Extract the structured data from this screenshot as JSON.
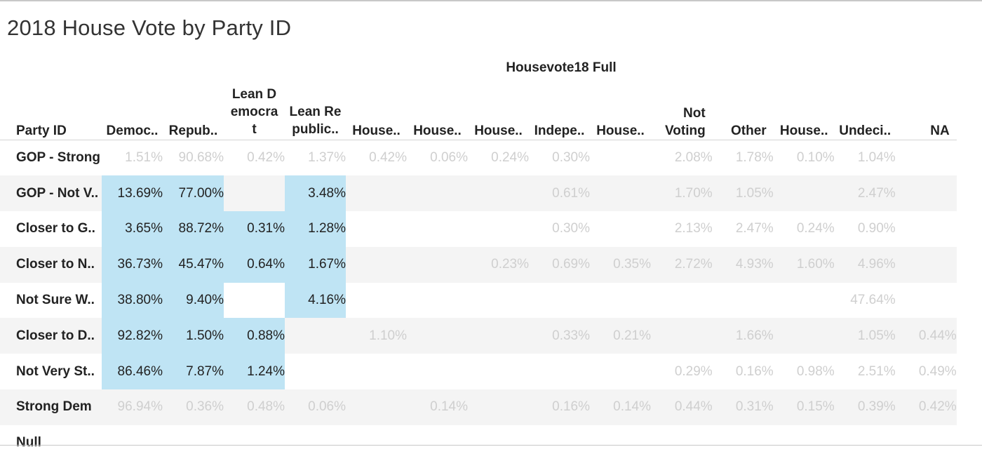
{
  "title": "2018 House Vote by Party ID",
  "chart_data": {
    "type": "table",
    "group_header": "Housevote18 Full",
    "row_header_label": "Party ID",
    "columns": [
      "Democ..",
      "Repub..",
      "Lean Democrat",
      "Lean Republic..",
      "House..",
      "House..",
      "House..",
      "Indepe..",
      "House..",
      "Not Voting",
      "Other",
      "House..",
      "Undeci..",
      "NA"
    ],
    "rows": [
      {
        "label": "GOP - Strong",
        "values": [
          "1.51%",
          "90.68%",
          "0.42%",
          "1.37%",
          "0.42%",
          "0.06%",
          "0.24%",
          "0.30%",
          "",
          "2.08%",
          "1.78%",
          "0.10%",
          "1.04%",
          ""
        ],
        "highlight": []
      },
      {
        "label": "GOP - Not V..",
        "values": [
          "13.69%",
          "77.00%",
          "",
          "3.48%",
          "",
          "",
          "",
          "0.61%",
          "",
          "1.70%",
          "1.05%",
          "",
          "2.47%",
          ""
        ],
        "highlight": [
          0,
          1,
          3
        ]
      },
      {
        "label": "Closer to G..",
        "values": [
          "3.65%",
          "88.72%",
          "0.31%",
          "1.28%",
          "",
          "",
          "",
          "0.30%",
          "",
          "2.13%",
          "2.47%",
          "0.24%",
          "0.90%",
          ""
        ],
        "highlight": [
          0,
          1,
          2,
          3
        ]
      },
      {
        "label": "Closer to N..",
        "values": [
          "36.73%",
          "45.47%",
          "0.64%",
          "1.67%",
          "",
          "",
          "0.23%",
          "0.69%",
          "0.35%",
          "2.72%",
          "4.93%",
          "1.60%",
          "4.96%",
          ""
        ],
        "highlight": [
          0,
          1,
          2,
          3
        ]
      },
      {
        "label": "Not Sure W..",
        "values": [
          "38.80%",
          "9.40%",
          "",
          "4.16%",
          "",
          "",
          "",
          "",
          "",
          "",
          "",
          "",
          "47.64%",
          ""
        ],
        "highlight": [
          0,
          1,
          3
        ]
      },
      {
        "label": "Closer to D..",
        "values": [
          "92.82%",
          "1.50%",
          "0.88%",
          "",
          "1.10%",
          "",
          "",
          "0.33%",
          "0.21%",
          "",
          "1.66%",
          "",
          "1.05%",
          "0.44%"
        ],
        "highlight": [
          0,
          1,
          2
        ]
      },
      {
        "label": "Not Very St..",
        "values": [
          "86.46%",
          "7.87%",
          "1.24%",
          "",
          "",
          "",
          "",
          "",
          "",
          "0.29%",
          "0.16%",
          "0.98%",
          "2.51%",
          "0.49%"
        ],
        "highlight": [
          0,
          1,
          2
        ]
      },
      {
        "label": "Strong Dem",
        "values": [
          "96.94%",
          "0.36%",
          "0.48%",
          "0.06%",
          "",
          "0.14%",
          "",
          "0.16%",
          "0.14%",
          "0.44%",
          "0.31%",
          "0.15%",
          "0.39%",
          "0.42%"
        ],
        "highlight": []
      },
      {
        "label": "Null",
        "values": [
          "",
          "",
          "",
          "",
          "",
          "",
          "",
          "",
          "",
          "",
          "",
          "",
          "",
          ""
        ],
        "highlight": []
      }
    ],
    "colors": {
      "highlight": "#bfe4f4",
      "stripe": "#f4f4f4",
      "dim_text": "#cfcfcf",
      "strong_text": "#222222"
    }
  }
}
